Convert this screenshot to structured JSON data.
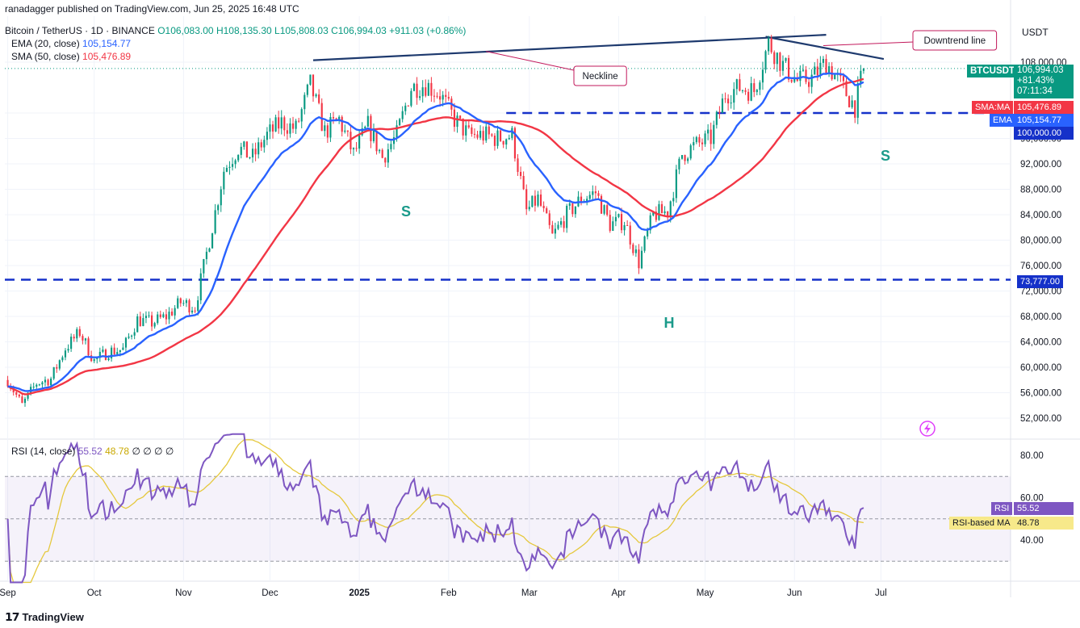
{
  "publisher_line": "ranadagger published on TradingView.com, Jun 25, 2025 16:48 UTC",
  "header": {
    "symbol": "Bitcoin / TetherUS · 1D · BINANCE",
    "o": "O106,083.00",
    "h": "H108,135.30",
    "l": "L105,808.03",
    "c": "C106,994.03",
    "change": "+911.03 (+0.86%)",
    "ema_label": "EMA (20, close)",
    "ema_value": "105,154.77",
    "sma_label": "SMA (50, close)",
    "sma_value": "105,476.89"
  },
  "rsi_header": {
    "label": "RSI (14, close)",
    "rsi_value": "55.52",
    "rsi_ma_value": "48.78",
    "placeholders": "∅ ∅ ∅ ∅"
  },
  "currency": "USDT",
  "price_badge": {
    "symbol": "BTCUSDT",
    "price": "106,994.03",
    "change": "+81.43%",
    "countdown": "07:11:34"
  },
  "tags": {
    "sma": "SMA:MA",
    "sma_value": "105,476.89",
    "ema": "EMA",
    "ema_value": "105,154.77",
    "level_100k": "100,000.00",
    "level_73777": "73,777.00",
    "rsi": "RSI",
    "rsi_value": "55.52",
    "rsi_ma": "RSI-based MA",
    "rsi_ma_value": "48.78"
  },
  "annotations": {
    "neckline": "Neckline",
    "downtrend": "Downtrend line",
    "left_shoulder": "S",
    "head": "H",
    "right_shoulder": "S"
  },
  "footer_logo": "TradingView",
  "colors": {
    "up": "#089981",
    "down": "#f23645",
    "ema": "#2962ff",
    "sma": "#f23645",
    "rsi": "#7e57c2",
    "rsi_ma": "#e5c83c",
    "trendline": "#1e3a6e",
    "dashed": "#1531c9",
    "annotation": "#1a9a8a"
  },
  "chart_data": [
    {
      "type": "candlestick",
      "xlabel": "",
      "ylabel": "",
      "x_ticks": [
        "Sep",
        "Oct",
        "Nov",
        "Dec",
        "2025",
        "Feb",
        "Mar",
        "Apr",
        "May",
        "Jun",
        "Jul"
      ],
      "y_ticks": [
        52000,
        56000,
        60000,
        64000,
        68000,
        72000,
        76000,
        80000,
        84000,
        88000,
        92000,
        96000,
        100000,
        108000
      ],
      "ylim": [
        50000,
        112000
      ],
      "series_close": [
        {
          "date": "2024-09-01",
          "close": 58000
        },
        {
          "date": "2024-09-06",
          "close": 54000
        },
        {
          "date": "2024-09-11",
          "close": 57500
        },
        {
          "date": "2024-09-16",
          "close": 58200
        },
        {
          "date": "2024-09-21",
          "close": 63000
        },
        {
          "date": "2024-09-26",
          "close": 65500
        },
        {
          "date": "2024-10-01",
          "close": 61000
        },
        {
          "date": "2024-10-06",
          "close": 62500
        },
        {
          "date": "2024-10-11",
          "close": 62800
        },
        {
          "date": "2024-10-16",
          "close": 67500
        },
        {
          "date": "2024-10-21",
          "close": 67000
        },
        {
          "date": "2024-10-26",
          "close": 68000
        },
        {
          "date": "2024-10-31",
          "close": 70200
        },
        {
          "date": "2024-11-05",
          "close": 69500
        },
        {
          "date": "2024-11-10",
          "close": 80000
        },
        {
          "date": "2024-11-15",
          "close": 91000
        },
        {
          "date": "2024-11-20",
          "close": 94500
        },
        {
          "date": "2024-11-25",
          "close": 93000
        },
        {
          "date": "2024-11-30",
          "close": 96500
        },
        {
          "date": "2024-12-05",
          "close": 98500
        },
        {
          "date": "2024-12-10",
          "close": 97500
        },
        {
          "date": "2024-12-15",
          "close": 104500
        },
        {
          "date": "2024-12-20",
          "close": 97000
        },
        {
          "date": "2024-12-25",
          "close": 99000
        },
        {
          "date": "2024-12-30",
          "close": 93500
        },
        {
          "date": "2025-01-04",
          "close": 98000
        },
        {
          "date": "2025-01-09",
          "close": 93000
        },
        {
          "date": "2025-01-14",
          "close": 96500
        },
        {
          "date": "2025-01-19",
          "close": 104000
        },
        {
          "date": "2025-01-24",
          "close": 104500
        },
        {
          "date": "2025-01-29",
          "close": 103000
        },
        {
          "date": "2025-02-03",
          "close": 99000
        },
        {
          "date": "2025-02-08",
          "close": 96500
        },
        {
          "date": "2025-02-13",
          "close": 96500
        },
        {
          "date": "2025-02-18",
          "close": 96000
        },
        {
          "date": "2025-02-23",
          "close": 96500
        },
        {
          "date": "2025-02-28",
          "close": 84500
        },
        {
          "date": "2025-03-04",
          "close": 86500
        },
        {
          "date": "2025-03-09",
          "close": 80500
        },
        {
          "date": "2025-03-14",
          "close": 84000
        },
        {
          "date": "2025-03-19",
          "close": 86500
        },
        {
          "date": "2025-03-24",
          "close": 87500
        },
        {
          "date": "2025-03-29",
          "close": 82500
        },
        {
          "date": "2025-04-03",
          "close": 83000
        },
        {
          "date": "2025-04-08",
          "close": 76500
        },
        {
          "date": "2025-04-13",
          "close": 84000
        },
        {
          "date": "2025-04-18",
          "close": 84500
        },
        {
          "date": "2025-04-23",
          "close": 93500
        },
        {
          "date": "2025-04-28",
          "close": 95000
        },
        {
          "date": "2025-05-03",
          "close": 96000
        },
        {
          "date": "2025-05-08",
          "close": 103000
        },
        {
          "date": "2025-05-13",
          "close": 104000
        },
        {
          "date": "2025-05-18",
          "close": 103500
        },
        {
          "date": "2025-05-23",
          "close": 111000
        },
        {
          "date": "2025-05-28",
          "close": 107500
        },
        {
          "date": "2025-06-02",
          "close": 105000
        },
        {
          "date": "2025-06-07",
          "close": 105500
        },
        {
          "date": "2025-06-12",
          "close": 108000
        },
        {
          "date": "2025-06-17",
          "close": 104500
        },
        {
          "date": "2025-06-22",
          "close": 101000
        },
        {
          "date": "2025-06-25",
          "close": 106994
        }
      ]
    },
    {
      "type": "line",
      "name": "RSI (14, close)",
      "y_ticks": [
        40,
        60,
        80
      ],
      "ylim": [
        20,
        90
      ],
      "bands": [
        30,
        70
      ]
    }
  ]
}
